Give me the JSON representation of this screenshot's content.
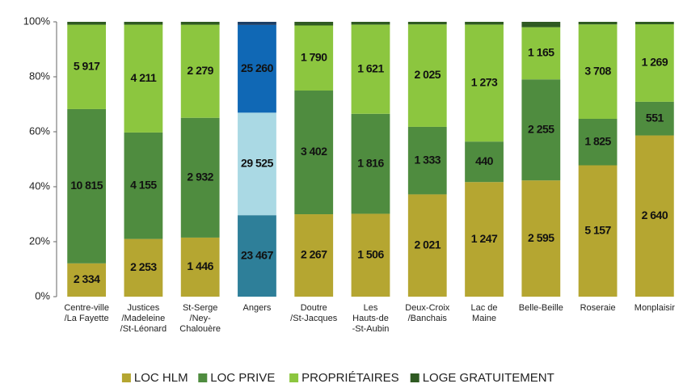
{
  "chart_data": {
    "type": "bar",
    "stacked": "percent",
    "categories": [
      [
        "Centre-ville",
        "/La Fayette"
      ],
      [
        "Justices",
        "/Madeleine",
        "/St-Léonard"
      ],
      [
        "St-Serge",
        "/Ney-",
        "Chalouère"
      ],
      [
        "Angers"
      ],
      [
        "Doutre",
        "/St-Jacques"
      ],
      [
        "Les",
        "Hauts-de",
        "-St-Aubin"
      ],
      [
        "Deux-Croix",
        "/Banchais"
      ],
      [
        "Lac de",
        "Maine"
      ],
      [
        "Belle-Beille"
      ],
      [
        "Roseraie"
      ],
      [
        "Monplaisir"
      ]
    ],
    "highlight_index": 3,
    "series": [
      {
        "name": "LOC HLM",
        "color": "#b5a631",
        "highlight_color": "#2e7f99",
        "values": [
          2334,
          2253,
          1446,
          23467,
          2267,
          1506,
          2021,
          1247,
          2595,
          5157,
          2640
        ],
        "value_labels": [
          "2 334",
          "2 253",
          "1 446",
          "23 467",
          "2 267",
          "1 506",
          "2 021",
          "1 247",
          "2 595",
          "5 157",
          "2 640"
        ]
      },
      {
        "name": "LOC PRIVE",
        "color": "#4f8c3f",
        "highlight_color": "#aad9e4",
        "values": [
          10815,
          4155,
          2932,
          29525,
          3402,
          1816,
          1333,
          440,
          2255,
          1825,
          551
        ],
        "value_labels": [
          "10 815",
          "4 155",
          "2 932",
          "29 525",
          "3 402",
          "1 816",
          "1 333",
          "440",
          "2 255",
          "1 825",
          "551"
        ]
      },
      {
        "name": "PROPRIÉTAIRES",
        "color": "#8cc63f",
        "highlight_color": "#1068b5",
        "values": [
          5917,
          4211,
          2279,
          25260,
          1790,
          1621,
          2025,
          1273,
          1165,
          3708,
          1269
        ],
        "value_labels": [
          "5 917",
          "4 211",
          "2 279",
          "25 260",
          "1 790",
          "1 621",
          "2 025",
          "1 273",
          "1 165",
          "3 708",
          "1 269"
        ]
      },
      {
        "name": "LOGE GRATUITEMENT",
        "color": "#2f5a22",
        "highlight_color": "#1c3f66",
        "values": [
          200,
          110,
          70,
          900,
          100,
          50,
          50,
          30,
          120,
          100,
          40
        ]
      }
    ],
    "ylim": [
      0,
      100
    ],
    "yticks": [
      {
        "value": 0,
        "label": "0%"
      },
      {
        "value": 20,
        "label": "20%"
      },
      {
        "value": 40,
        "label": "40%"
      },
      {
        "value": 60,
        "label": "60%"
      },
      {
        "value": 80,
        "label": "80%"
      },
      {
        "value": 100,
        "label": "100%"
      }
    ],
    "legend": "bottom"
  }
}
